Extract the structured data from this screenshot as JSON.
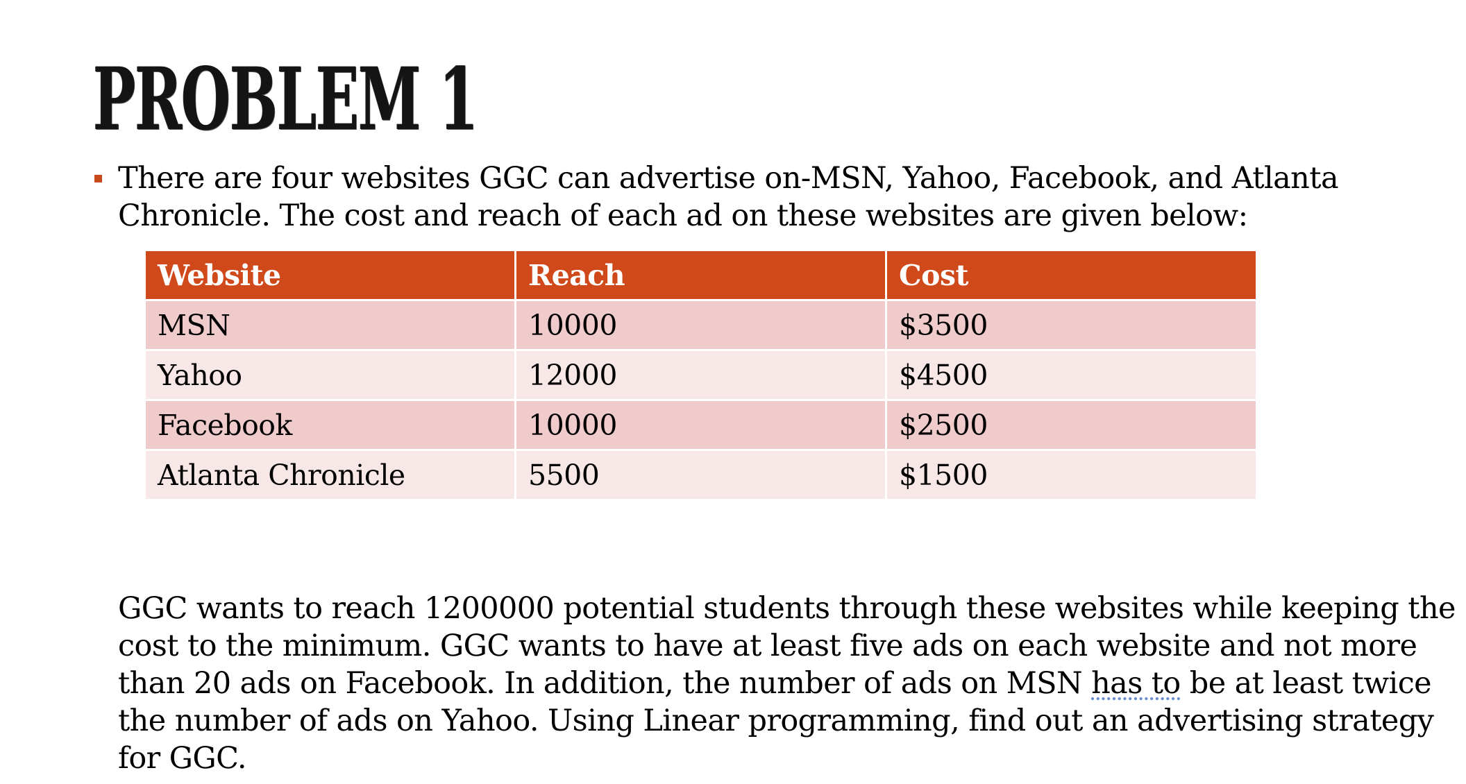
{
  "title": "PROBLEM 1",
  "bullet": {
    "text": "There are four websites GGC can advertise on-MSN, Yahoo, Facebook, and Atlanta Chronicle. The cost and reach of each ad on these websites are given below:"
  },
  "table": {
    "headers": [
      "Website",
      "Reach",
      "Cost"
    ],
    "rows": [
      [
        "MSN",
        "10000",
        "$3500"
      ],
      [
        "Yahoo",
        "12000",
        "$4500"
      ],
      [
        "Facebook",
        "10000",
        "$2500"
      ],
      [
        "Atlanta Chronicle",
        "5500",
        "$1500"
      ]
    ]
  },
  "paragraph": {
    "before": "GGC wants to reach 1200000 potential students through these websites while keeping the cost to the minimum. GGC wants to have at least five ads on each website and not more than 20 ads on Facebook.  In addition, the number of ads on MSN ",
    "underlined": "has to",
    "after": " be at least twice the number of ads on Yahoo. Using Linear programming, find out an advertising strategy for GGC."
  },
  "colors": {
    "accent": "#d0491b",
    "row_odd": "#efcccb",
    "row_even": "#f7e7e6"
  }
}
